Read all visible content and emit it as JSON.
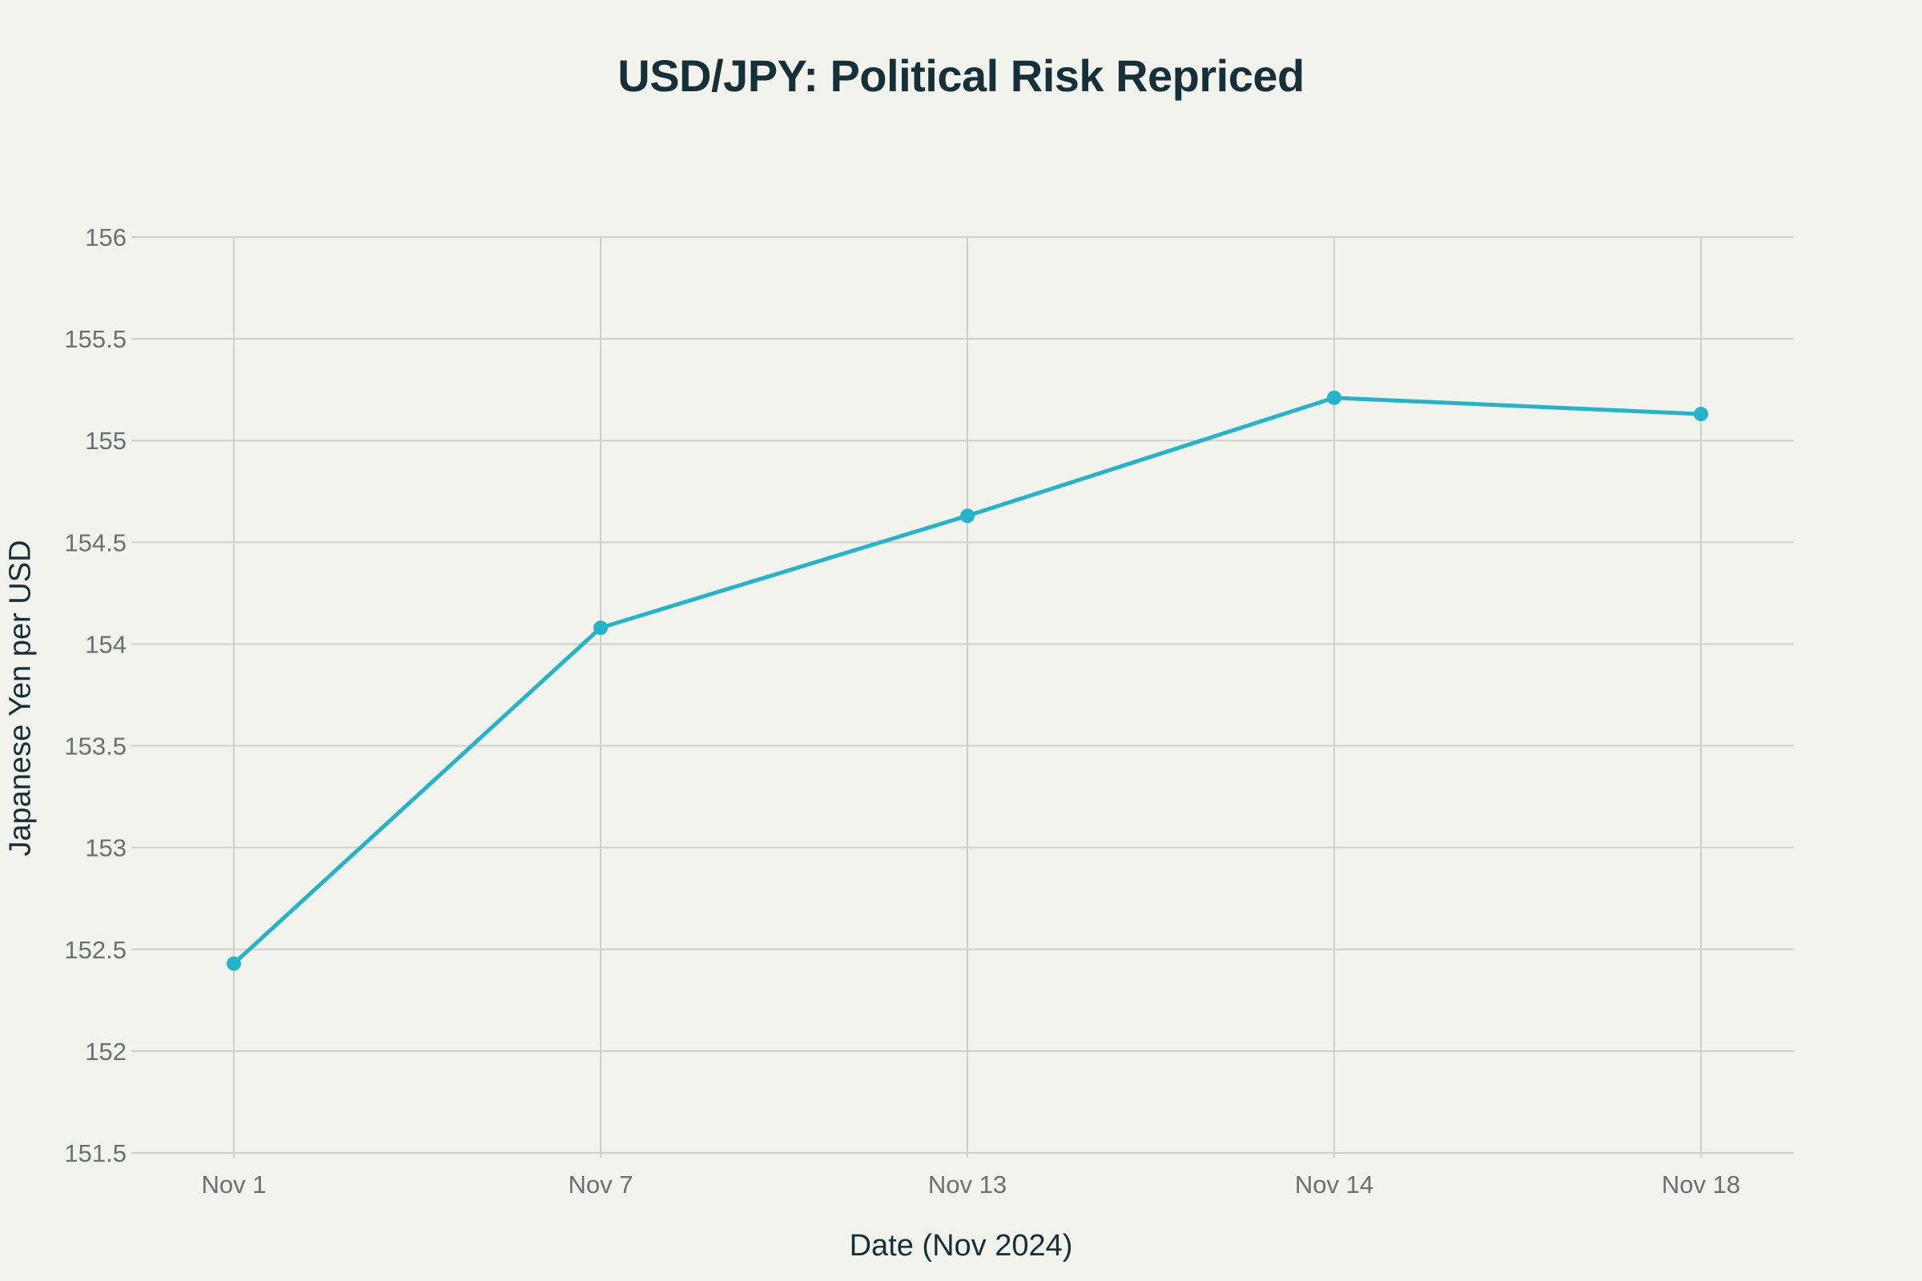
{
  "chart_data": {
    "type": "line",
    "title": "USD/JPY: Political Risk Repriced",
    "xlabel": "Date (Nov 2024)",
    "ylabel": "Japanese Yen per USD",
    "categories": [
      "Nov 1",
      "Nov 7",
      "Nov 13",
      "Nov 14",
      "Nov 18"
    ],
    "series": [
      {
        "values": [
          152.43,
          154.08,
          154.63,
          155.21,
          155.13
        ],
        "color": "#25b3c9"
      }
    ],
    "ylim": [
      151.5,
      156
    ],
    "yticks": [
      151.5,
      152,
      152.5,
      153,
      153.5,
      154,
      154.5,
      155,
      155.5,
      156
    ],
    "yticks_labels": [
      "151.5",
      "152",
      "152.5",
      "153",
      "153.5",
      "154",
      "154.5",
      "155",
      "155.5",
      "156"
    ],
    "grid": true,
    "legend": "none",
    "colors": {
      "background": "#f3f3ee",
      "grid": "#cfd0cc",
      "title": "#163039",
      "ticks": "#6b6f73",
      "line": "#25b3c9"
    }
  }
}
